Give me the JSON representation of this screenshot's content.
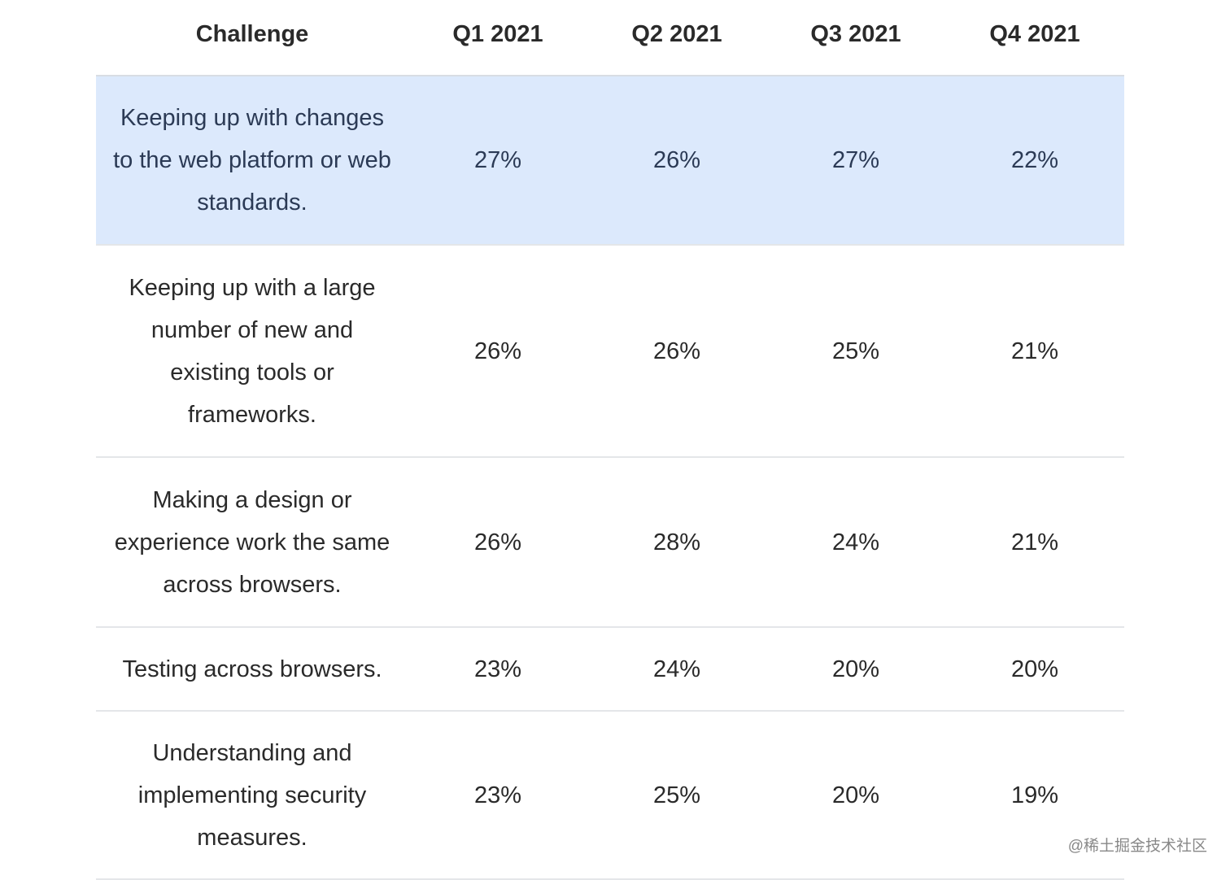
{
  "table": {
    "header": [
      "Challenge",
      "Q1 2021",
      "Q2 2021",
      "Q3 2021",
      "Q4 2021"
    ],
    "rows": [
      [
        "Keeping up with changes to the web platform or web standards.",
        "27%",
        "26%",
        "27%",
        "22%"
      ],
      [
        "Keeping up with a large number of new and existing tools or frameworks.",
        "26%",
        "26%",
        "25%",
        "21%"
      ],
      [
        "Making a design or experience work the same across browsers.",
        "26%",
        "28%",
        "24%",
        "21%"
      ],
      [
        "Testing across browsers.",
        "23%",
        "24%",
        "20%",
        "20%"
      ],
      [
        "Understanding and implementing security measures.",
        "23%",
        "25%",
        "20%",
        "19%"
      ]
    ]
  },
  "watermark": "@稀土掘金技术社区"
}
